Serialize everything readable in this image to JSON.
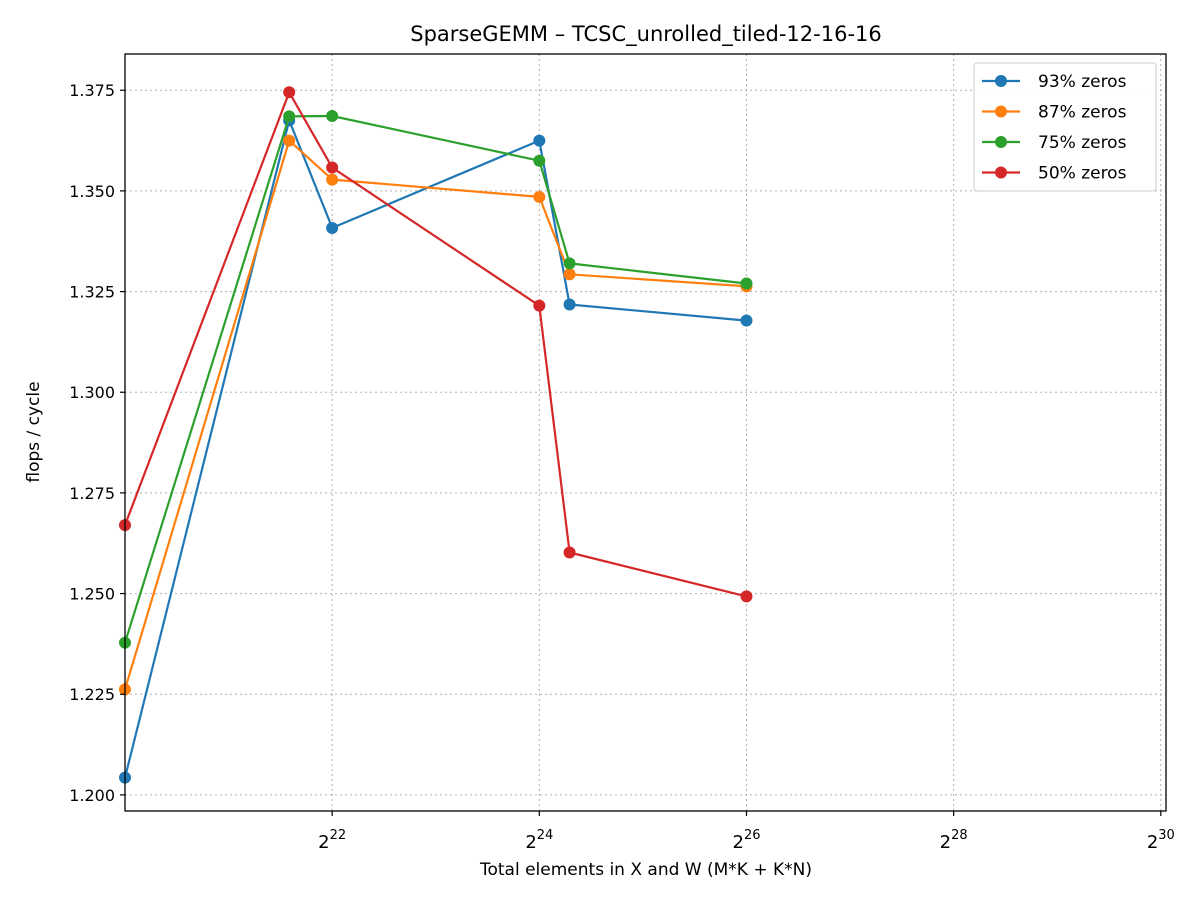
{
  "chart_data": {
    "type": "line",
    "title": "SparseGEMM – TCSC_unrolled_tiled-12-16-16",
    "xlabel": "Total elements in X and W (M*K + K*N)",
    "ylabel": "flops / cycle",
    "x_scale": "log2",
    "x_exponent_range": [
      20.0,
      30.05
    ],
    "ylim": [
      1.196,
      1.384
    ],
    "x_ticks": [
      {
        "base": "2",
        "exp": "22",
        "value_exp": 22
      },
      {
        "base": "2",
        "exp": "24",
        "value_exp": 24
      },
      {
        "base": "2",
        "exp": "26",
        "value_exp": 26
      },
      {
        "base": "2",
        "exp": "28",
        "value_exp": 28
      },
      {
        "base": "2",
        "exp": "30",
        "value_exp": 30
      }
    ],
    "y_ticks": [
      1.2,
      1.225,
      1.25,
      1.275,
      1.3,
      1.325,
      1.35,
      1.375
    ],
    "y_tick_labels": [
      "1.200",
      "1.225",
      "1.250",
      "1.275",
      "1.300",
      "1.325",
      "1.350",
      "1.375"
    ],
    "grid": true,
    "legend_position": "top-right",
    "x_exp": [
      20.0,
      21.585,
      22.0,
      24.0,
      24.292,
      26.0
    ],
    "series": [
      {
        "name": "93% zeros",
        "color": "#1f77b4",
        "values": [
          1.2043,
          1.3675,
          1.3408,
          1.3625,
          1.3218,
          1.3178
        ]
      },
      {
        "name": "87% zeros",
        "color": "#ff7f0e",
        "values": [
          1.2262,
          1.3625,
          1.3528,
          1.3485,
          1.3293,
          1.3263
        ]
      },
      {
        "name": "75% zeros",
        "color": "#2ca02c",
        "values": [
          1.2378,
          1.3685,
          1.3686,
          1.3575,
          1.332,
          1.327
        ]
      },
      {
        "name": "50% zeros",
        "color": "#d62728",
        "values": [
          1.267,
          1.3745,
          1.3558,
          1.3215,
          1.2602,
          1.2493
        ]
      }
    ]
  }
}
